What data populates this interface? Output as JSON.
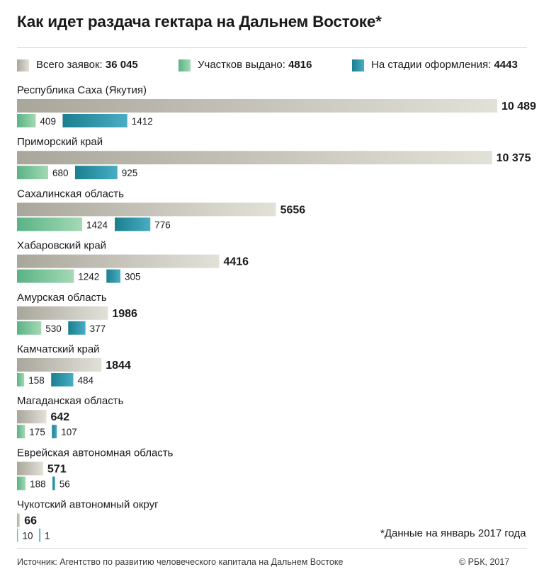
{
  "header": {
    "title": "Как идет раздача гектара на Дальнем Востоке*"
  },
  "legend": {
    "total": {
      "label": "Всего заявок:",
      "value": "36 045"
    },
    "issued": {
      "label": "Участков выдано:",
      "value": "4816"
    },
    "in_process": {
      "label": "На стадии оформления:",
      "value": "4443"
    }
  },
  "colors": {
    "total": [
      "#a9a69b",
      "#e2e1d8"
    ],
    "issued": [
      "#5ab385",
      "#a4d9b4"
    ],
    "in_process": [
      "#1a7f8e",
      "#49adc4"
    ]
  },
  "chart_data": {
    "type": "bar",
    "orientation": "horizontal",
    "title": "Как идет раздача гектара на Дальнем Востоке*",
    "categories": [
      "Республика Саха (Якутия)",
      "Приморский край",
      "Сахалинская область",
      "Хабаровский край",
      "Амурская область",
      "Камчатский край",
      "Магаданская область",
      "Еврейская автономная область",
      "Чукотский автономный округ"
    ],
    "series": [
      {
        "name": "Всего заявок",
        "values": [
          10489,
          10375,
          5656,
          4416,
          1986,
          1844,
          642,
          571,
          66
        ],
        "labels": [
          "10 489",
          "10 375",
          "5656",
          "4416",
          "1986",
          "1844",
          "642",
          "571",
          "66"
        ]
      },
      {
        "name": "Участков выдано",
        "values": [
          409,
          680,
          1424,
          1242,
          530,
          158,
          175,
          188,
          10
        ],
        "labels": [
          "409",
          "680",
          "1424",
          "1242",
          "530",
          "158",
          "175",
          "188",
          "10"
        ]
      },
      {
        "name": "На стадии оформления",
        "values": [
          1412,
          925,
          776,
          305,
          377,
          484,
          107,
          56,
          1
        ],
        "labels": [
          "1412",
          "925",
          "776",
          "305",
          "377",
          "484",
          "107",
          "56",
          "1"
        ]
      }
    ],
    "legend_position": "top",
    "grid": false
  },
  "footnote": "*Данные на январь 2017 года",
  "footer": {
    "source": "Источник: Агентство по развитию человеческого капитала на Дальнем Востоке",
    "copyright": "© РБК, 2017"
  }
}
